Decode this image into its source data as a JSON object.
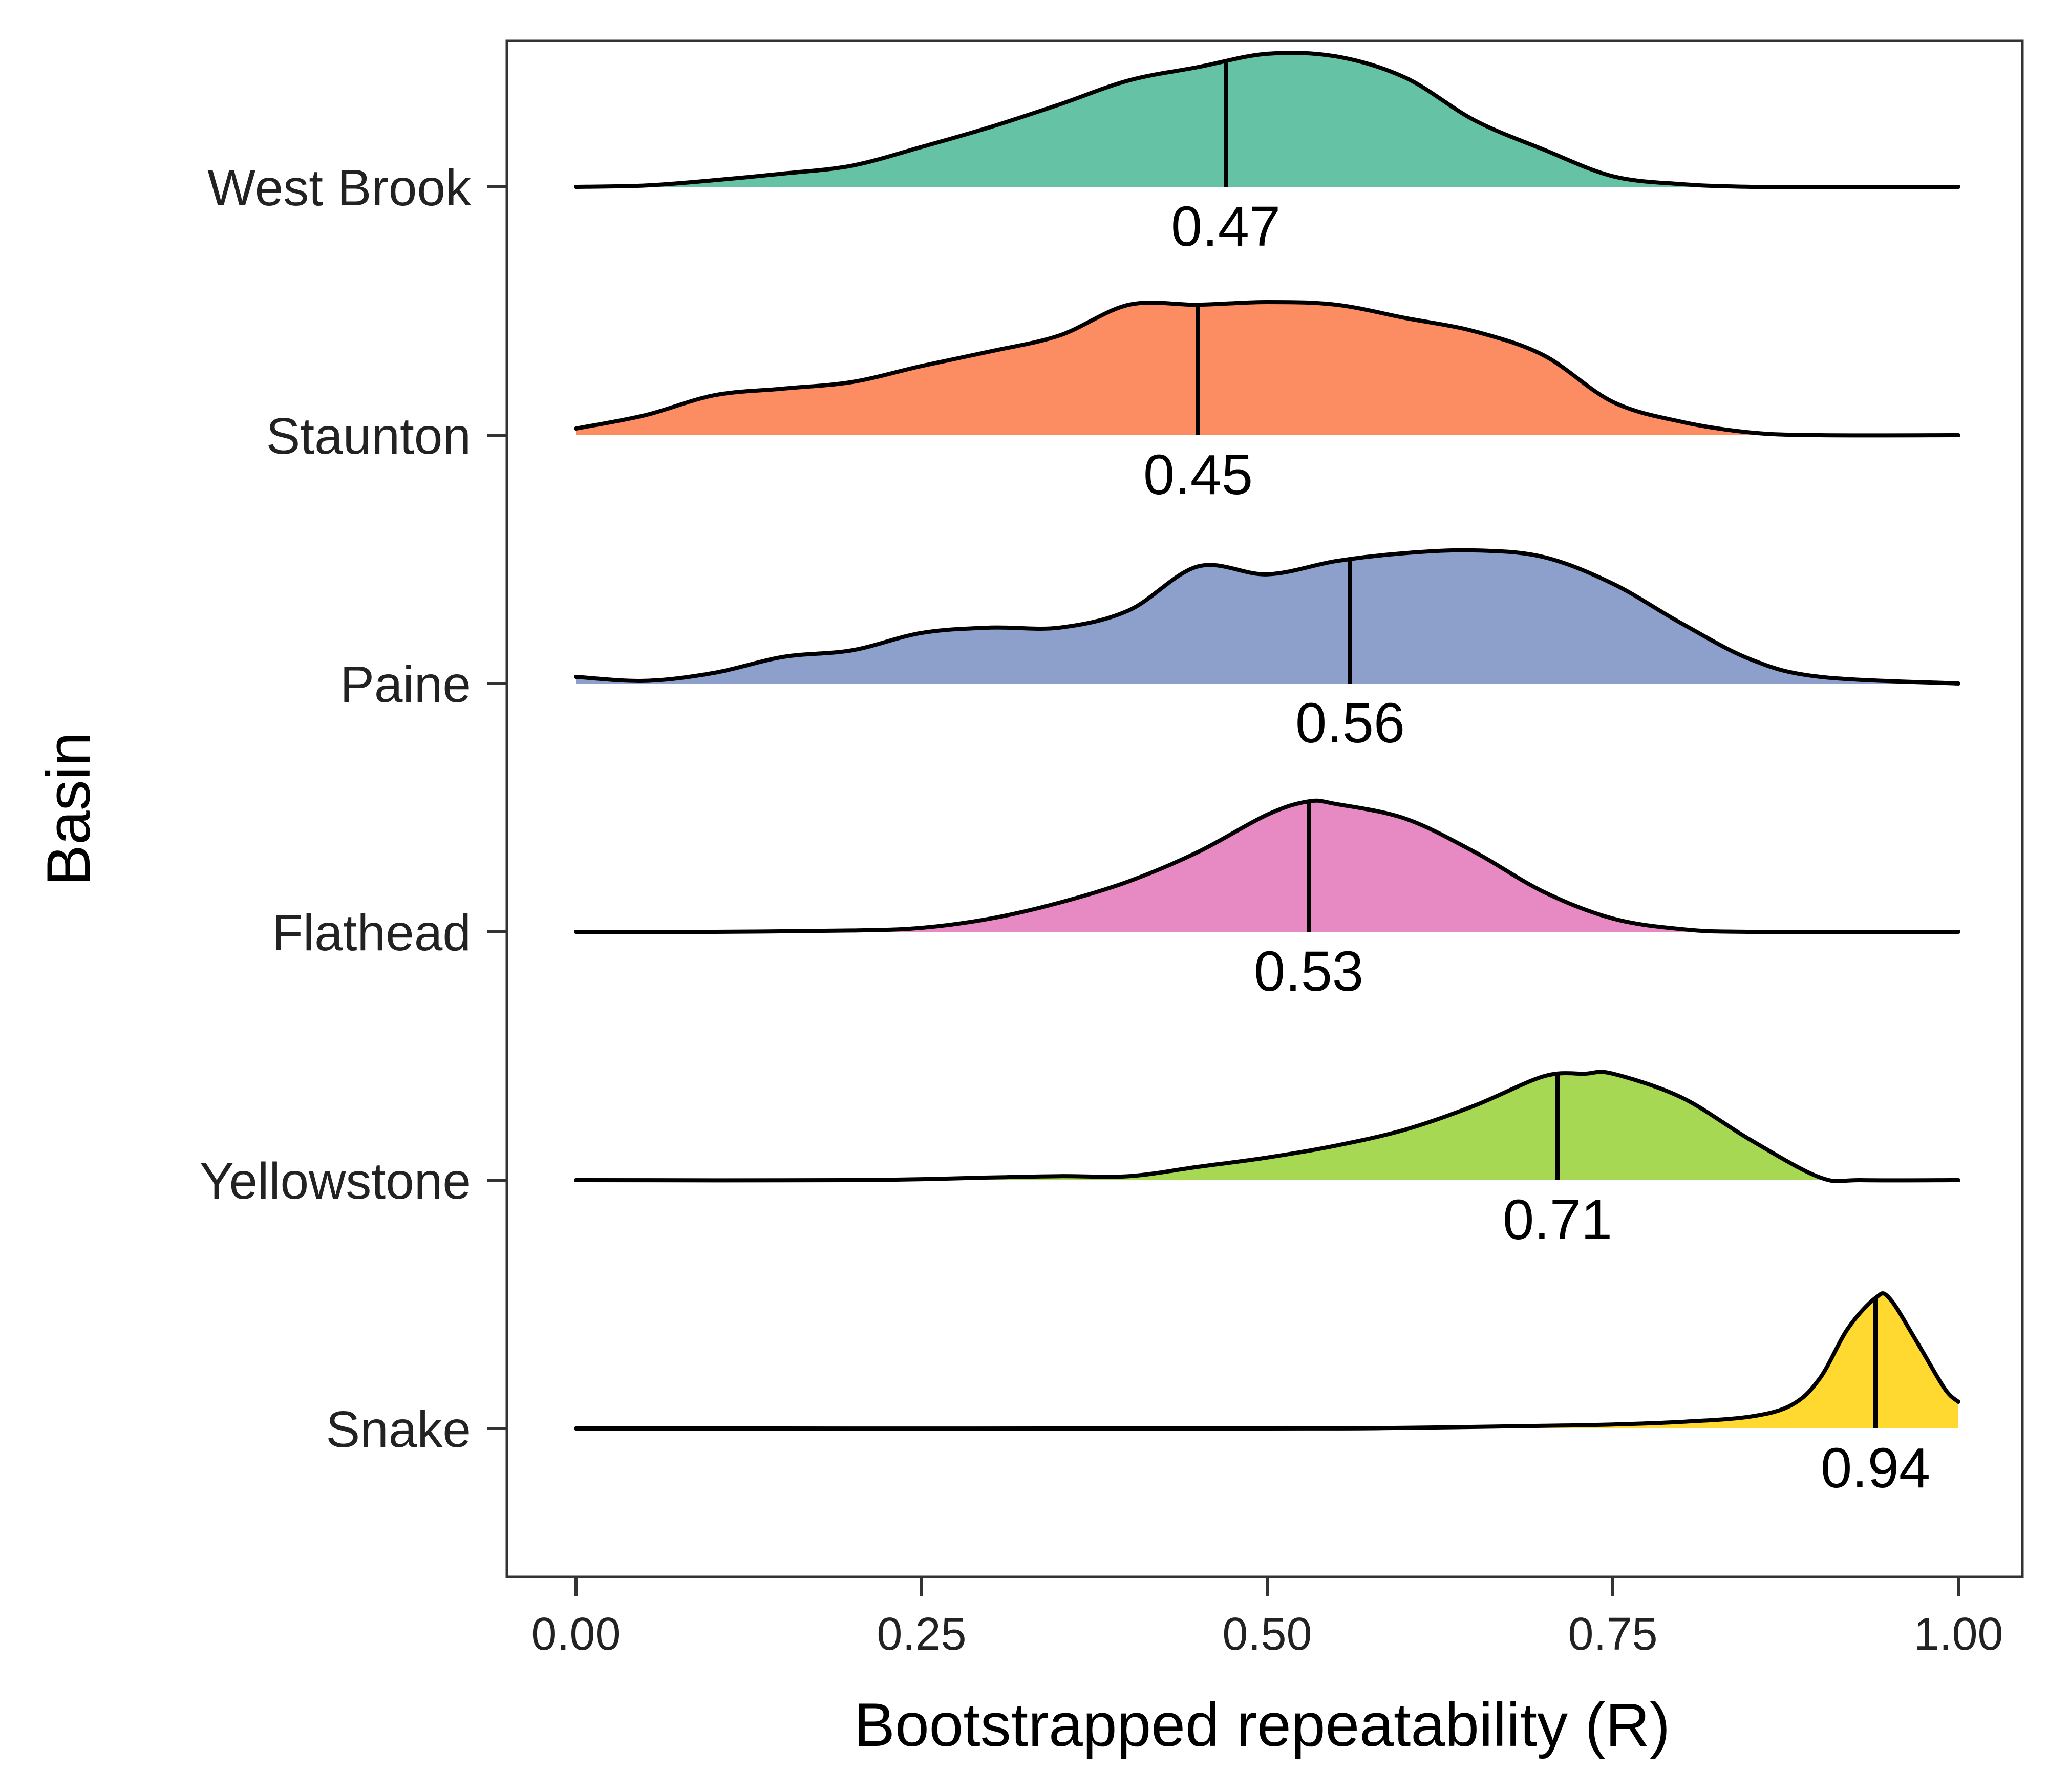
{
  "chart_data": {
    "type": "ridgeline",
    "xlabel": "Bootstrapped repeatability (R)",
    "ylabel": "Basin",
    "xlim": [
      0,
      1
    ],
    "x_ticks": [
      "0.00",
      "0.25",
      "0.50",
      "0.75",
      "1.00"
    ],
    "grid": false,
    "legend": "none",
    "series": [
      {
        "name": "West Brook",
        "color": "#66c2a5",
        "median": 0.47,
        "median_label": "0.47",
        "density": [
          [
            0.0,
            0.0
          ],
          [
            0.05,
            0.01
          ],
          [
            0.1,
            0.05
          ],
          [
            0.15,
            0.1
          ],
          [
            0.2,
            0.16
          ],
          [
            0.25,
            0.3
          ],
          [
            0.3,
            0.45
          ],
          [
            0.35,
            0.62
          ],
          [
            0.4,
            0.8
          ],
          [
            0.45,
            0.9
          ],
          [
            0.5,
            1.0
          ],
          [
            0.55,
            0.98
          ],
          [
            0.6,
            0.82
          ],
          [
            0.65,
            0.5
          ],
          [
            0.7,
            0.28
          ],
          [
            0.75,
            0.08
          ],
          [
            0.8,
            0.02
          ],
          [
            0.85,
            0.0
          ],
          [
            0.9,
            0.0
          ],
          [
            1.0,
            0.0
          ]
        ]
      },
      {
        "name": "Staunton",
        "color": "#fc8d62",
        "median": 0.45,
        "median_label": "0.45",
        "density": [
          [
            0.0,
            0.05
          ],
          [
            0.05,
            0.15
          ],
          [
            0.1,
            0.3
          ],
          [
            0.15,
            0.35
          ],
          [
            0.2,
            0.4
          ],
          [
            0.25,
            0.52
          ],
          [
            0.3,
            0.63
          ],
          [
            0.35,
            0.75
          ],
          [
            0.4,
            0.98
          ],
          [
            0.45,
            0.98
          ],
          [
            0.5,
            1.0
          ],
          [
            0.55,
            0.98
          ],
          [
            0.6,
            0.88
          ],
          [
            0.65,
            0.78
          ],
          [
            0.7,
            0.6
          ],
          [
            0.75,
            0.25
          ],
          [
            0.8,
            0.1
          ],
          [
            0.85,
            0.02
          ],
          [
            0.9,
            0.0
          ],
          [
            1.0,
            0.0
          ]
        ]
      },
      {
        "name": "Paine",
        "color": "#8da0cb",
        "median": 0.56,
        "median_label": "0.56",
        "density": [
          [
            0.0,
            0.05
          ],
          [
            0.05,
            0.02
          ],
          [
            0.1,
            0.08
          ],
          [
            0.15,
            0.2
          ],
          [
            0.2,
            0.25
          ],
          [
            0.25,
            0.38
          ],
          [
            0.3,
            0.42
          ],
          [
            0.35,
            0.42
          ],
          [
            0.4,
            0.55
          ],
          [
            0.45,
            0.88
          ],
          [
            0.5,
            0.82
          ],
          [
            0.55,
            0.92
          ],
          [
            0.6,
            0.98
          ],
          [
            0.65,
            1.0
          ],
          [
            0.7,
            0.95
          ],
          [
            0.75,
            0.75
          ],
          [
            0.8,
            0.45
          ],
          [
            0.85,
            0.18
          ],
          [
            0.9,
            0.05
          ],
          [
            1.0,
            0.0
          ]
        ]
      },
      {
        "name": "Flathead",
        "color": "#e78ac3",
        "median": 0.53,
        "median_label": "0.53",
        "density": [
          [
            0.0,
            0.0
          ],
          [
            0.1,
            0.0
          ],
          [
            0.2,
            0.01
          ],
          [
            0.25,
            0.03
          ],
          [
            0.3,
            0.1
          ],
          [
            0.35,
            0.22
          ],
          [
            0.4,
            0.38
          ],
          [
            0.45,
            0.6
          ],
          [
            0.5,
            0.88
          ],
          [
            0.53,
            0.98
          ],
          [
            0.55,
            0.96
          ],
          [
            0.6,
            0.85
          ],
          [
            0.65,
            0.6
          ],
          [
            0.7,
            0.3
          ],
          [
            0.75,
            0.1
          ],
          [
            0.8,
            0.02
          ],
          [
            0.85,
            0.0
          ],
          [
            1.0,
            0.0
          ]
        ]
      },
      {
        "name": "Yellowstone",
        "color": "#a6d854",
        "median": 0.71,
        "median_label": "0.71",
        "density": [
          [
            0.0,
            0.0
          ],
          [
            0.2,
            0.0
          ],
          [
            0.3,
            0.02
          ],
          [
            0.35,
            0.03
          ],
          [
            0.4,
            0.03
          ],
          [
            0.45,
            0.1
          ],
          [
            0.5,
            0.17
          ],
          [
            0.55,
            0.26
          ],
          [
            0.6,
            0.38
          ],
          [
            0.65,
            0.56
          ],
          [
            0.7,
            0.78
          ],
          [
            0.73,
            0.8
          ],
          [
            0.75,
            0.8
          ],
          [
            0.8,
            0.62
          ],
          [
            0.85,
            0.3
          ],
          [
            0.9,
            0.02
          ],
          [
            0.93,
            0.0
          ],
          [
            1.0,
            0.0
          ]
        ]
      },
      {
        "name": "Snake",
        "color": "#ffd92f",
        "median": 0.94,
        "median_label": "0.94",
        "density": [
          [
            0.0,
            0.0
          ],
          [
            0.5,
            0.0
          ],
          [
            0.6,
            0.005
          ],
          [
            0.7,
            0.02
          ],
          [
            0.75,
            0.03
          ],
          [
            0.8,
            0.05
          ],
          [
            0.85,
            0.09
          ],
          [
            0.88,
            0.18
          ],
          [
            0.9,
            0.38
          ],
          [
            0.92,
            0.75
          ],
          [
            0.94,
            0.98
          ],
          [
            0.95,
            0.98
          ],
          [
            0.97,
            0.65
          ],
          [
            0.99,
            0.3
          ],
          [
            1.0,
            0.2
          ]
        ]
      }
    ]
  }
}
